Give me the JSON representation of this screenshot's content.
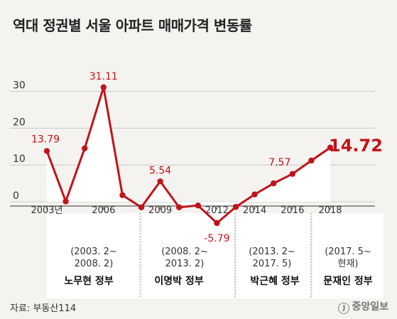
{
  "title": "역대 정권별 서울 아파트 매매가격 변동률",
  "source": "자료: 부동산114",
  "logo": "중앙일보",
  "chart_data": {
    "type": "line",
    "title": "역대 정권별 서울 아파트 매매가격 변동률",
    "x": [
      2003,
      2004,
      2005,
      2006,
      2007,
      2008,
      2009,
      2010,
      2011,
      2012,
      2013,
      2014,
      2015,
      2016,
      2017,
      2018
    ],
    "values": [
      13.79,
      0.1,
      14.5,
      31.11,
      1.8,
      -1.5,
      5.54,
      -1.5,
      -1.0,
      -5.79,
      -1.4,
      2.0,
      5.0,
      7.57,
      11.2,
      14.72
    ],
    "x_tick_labels": [
      "2003년",
      "2006",
      "2009",
      "2012",
      "2014",
      "2016",
      "2018"
    ],
    "y_ticks": [
      "0",
      "10",
      "20",
      "30"
    ],
    "ylim": [
      -10,
      33
    ],
    "data_labels": [
      {
        "x": 2003,
        "text": "13.79"
      },
      {
        "x": 2006,
        "text": "31.11"
      },
      {
        "x": 2009,
        "text": "5.54"
      },
      {
        "x": 2012,
        "text": "-5.79"
      },
      {
        "x": 2016,
        "text": "7.57"
      },
      {
        "x": 2018,
        "text": "14.72"
      }
    ],
    "line_color": "#c0141b",
    "grid": true
  },
  "governments": [
    {
      "period": "(2003. 2~\n2008. 2)",
      "name": "노무현 정부"
    },
    {
      "period": "(2008. 2~\n2013. 2)",
      "name": "이명박 정부"
    },
    {
      "period": "(2013. 2~\n2017. 5)",
      "name": "박근혜 정부"
    },
    {
      "period": "(2017. 5~\n현재)",
      "name": "문재인 정부"
    }
  ]
}
